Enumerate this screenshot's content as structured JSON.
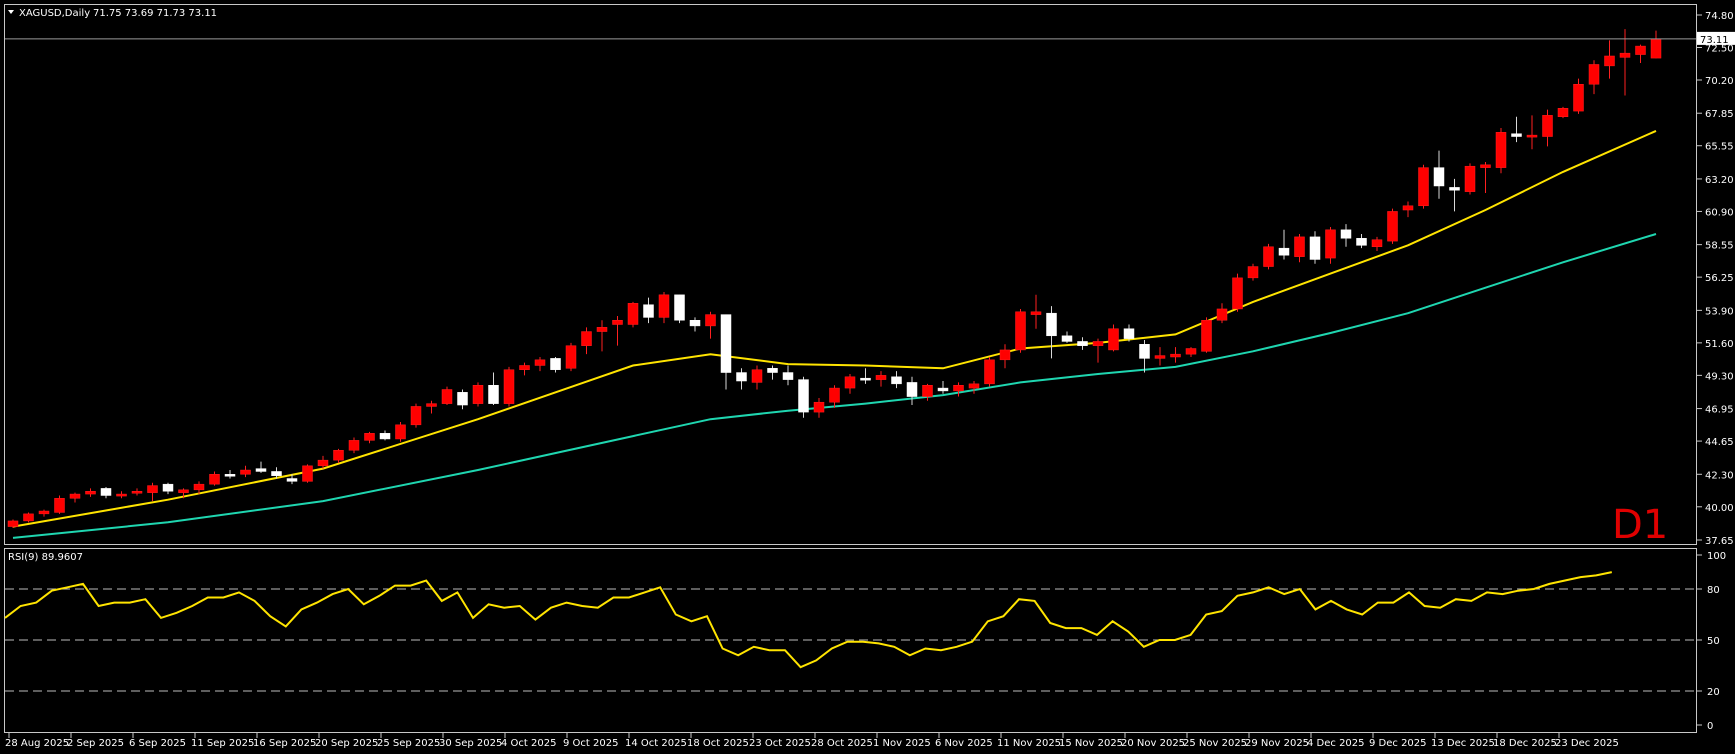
{
  "chart_data": {
    "type": "candlestick",
    "symbol_header": "XAGUSD,Daily",
    "ohlc_header": "71.75 73.69 71.73 73.11",
    "timeframe_label": "D1",
    "price_axis": {
      "range": [
        37.65,
        74.8
      ],
      "ticks": [
        "74.80",
        "72.50",
        "70.20",
        "67.85",
        "65.55",
        "63.20",
        "60.90",
        "58.55",
        "56.25",
        "53.90",
        "51.60",
        "49.30",
        "46.95",
        "44.65",
        "42.30",
        "40.00",
        "37.65"
      ]
    },
    "last_price_label": "73.11",
    "date_labels": [
      {
        "label": "28 Aug 2025",
        "bar": 0
      },
      {
        "label": "2 Sep 2025",
        "bar": 4
      },
      {
        "label": "6 Sep 2025",
        "bar": 8
      },
      {
        "label": "11 Sep 2025",
        "bar": 12
      },
      {
        "label": "16 Sep 2025",
        "bar": 16
      },
      {
        "label": "20 Sep 2025",
        "bar": 20
      },
      {
        "label": "25 Sep 2025",
        "bar": 24
      },
      {
        "label": "30 Sep 2025",
        "bar": 28
      },
      {
        "label": "4 Oct 2025",
        "bar": 32
      },
      {
        "label": "9 Oct 2025",
        "bar": 36
      },
      {
        "label": "14 Oct 2025",
        "bar": 40
      },
      {
        "label": "18 Oct 2025",
        "bar": 44
      },
      {
        "label": "23 Oct 2025",
        "bar": 48
      },
      {
        "label": "28 Oct 2025",
        "bar": 52
      },
      {
        "label": "1 Nov 2025",
        "bar": 56
      },
      {
        "label": "6 Nov 2025",
        "bar": 60
      },
      {
        "label": "11 Nov 2025",
        "bar": 64
      },
      {
        "label": "15 Nov 2025",
        "bar": 68
      },
      {
        "label": "20 Nov 2025",
        "bar": 72
      },
      {
        "label": "25 Nov 2025",
        "bar": 76
      },
      {
        "label": "29 Nov 2025",
        "bar": 80
      },
      {
        "label": "4 Dec 2025",
        "bar": 84
      },
      {
        "label": "9 Dec 2025",
        "bar": 88
      },
      {
        "label": "13 Dec 2025",
        "bar": 92
      },
      {
        "label": "18 Dec 2025",
        "bar": 96
      },
      {
        "label": "23 Dec 2025",
        "bar": 100
      }
    ],
    "candles": [
      [
        38.6,
        39.1,
        38.5,
        39.0
      ],
      [
        39.0,
        39.6,
        38.9,
        39.5
      ],
      [
        39.5,
        39.8,
        39.3,
        39.7
      ],
      [
        39.6,
        40.8,
        39.5,
        40.6
      ],
      [
        40.6,
        41.0,
        40.3,
        40.9
      ],
      [
        40.9,
        41.3,
        40.7,
        41.1
      ],
      [
        41.3,
        41.4,
        40.6,
        40.8
      ],
      [
        40.8,
        41.1,
        40.6,
        40.9
      ],
      [
        41.0,
        41.3,
        40.8,
        41.1
      ],
      [
        41.0,
        41.7,
        40.4,
        41.5
      ],
      [
        41.6,
        41.7,
        40.9,
        41.1
      ],
      [
        41.0,
        41.3,
        40.6,
        41.2
      ],
      [
        41.2,
        41.8,
        40.9,
        41.6
      ],
      [
        41.6,
        42.5,
        41.5,
        42.3
      ],
      [
        42.3,
        42.6,
        42.0,
        42.2
      ],
      [
        42.3,
        42.9,
        42.1,
        42.6
      ],
      [
        42.7,
        43.2,
        42.4,
        42.5
      ],
      [
        42.5,
        42.8,
        42.0,
        42.2
      ],
      [
        42.0,
        42.3,
        41.6,
        41.8
      ],
      [
        41.8,
        43.0,
        41.7,
        42.9
      ],
      [
        42.9,
        43.6,
        42.7,
        43.3
      ],
      [
        43.3,
        44.1,
        43.1,
        44.0
      ],
      [
        44.0,
        44.9,
        43.8,
        44.7
      ],
      [
        44.7,
        45.3,
        44.5,
        45.2
      ],
      [
        45.2,
        45.4,
        44.7,
        44.8
      ],
      [
        44.8,
        46.0,
        44.6,
        45.8
      ],
      [
        45.8,
        47.3,
        45.6,
        47.1
      ],
      [
        47.1,
        47.5,
        46.6,
        47.3
      ],
      [
        47.3,
        48.5,
        47.2,
        48.3
      ],
      [
        48.1,
        48.3,
        46.9,
        47.2
      ],
      [
        47.3,
        48.8,
        47.1,
        48.6
      ],
      [
        48.6,
        49.5,
        47.2,
        47.3
      ],
      [
        47.3,
        49.9,
        47.1,
        49.7
      ],
      [
        49.7,
        50.2,
        49.3,
        50.0
      ],
      [
        50.0,
        50.6,
        49.6,
        50.4
      ],
      [
        50.5,
        50.6,
        49.5,
        49.7
      ],
      [
        49.8,
        51.6,
        49.6,
        51.4
      ],
      [
        51.4,
        52.7,
        50.8,
        52.4
      ],
      [
        52.4,
        53.2,
        51.0,
        52.7
      ],
      [
        52.9,
        53.5,
        51.4,
        53.2
      ],
      [
        52.9,
        54.5,
        52.7,
        54.4
      ],
      [
        54.3,
        54.8,
        53.0,
        53.4
      ],
      [
        53.4,
        55.2,
        53.0,
        55.0
      ],
      [
        55.0,
        55.0,
        53.0,
        53.2
      ],
      [
        53.2,
        53.4,
        52.4,
        52.8
      ],
      [
        52.8,
        53.8,
        51.9,
        53.6
      ],
      [
        53.6,
        53.6,
        48.3,
        49.5
      ],
      [
        49.5,
        49.8,
        48.3,
        48.9
      ],
      [
        48.8,
        50.0,
        48.3,
        49.7
      ],
      [
        49.8,
        50.0,
        49.0,
        49.5
      ],
      [
        49.5,
        50.0,
        48.6,
        49.0
      ],
      [
        49.0,
        49.2,
        46.3,
        46.7
      ],
      [
        46.7,
        47.7,
        46.3,
        47.4
      ],
      [
        47.4,
        48.6,
        47.0,
        48.4
      ],
      [
        48.4,
        49.4,
        48.0,
        49.2
      ],
      [
        49.1,
        49.8,
        48.7,
        49.0
      ],
      [
        49.0,
        49.6,
        48.5,
        49.3
      ],
      [
        49.2,
        49.6,
        48.4,
        48.7
      ],
      [
        48.8,
        49.2,
        47.2,
        47.8
      ],
      [
        47.8,
        48.7,
        47.5,
        48.6
      ],
      [
        48.4,
        48.9,
        48.0,
        48.2
      ],
      [
        48.2,
        48.8,
        47.8,
        48.6
      ],
      [
        48.4,
        48.9,
        48.0,
        48.7
      ],
      [
        48.7,
        50.6,
        48.5,
        50.4
      ],
      [
        50.4,
        51.5,
        49.8,
        51.1
      ],
      [
        51.1,
        54.0,
        50.9,
        53.8
      ],
      [
        53.6,
        55.0,
        52.6,
        53.8
      ],
      [
        53.7,
        54.2,
        50.5,
        52.1
      ],
      [
        52.1,
        52.4,
        51.6,
        51.7
      ],
      [
        51.7,
        52.0,
        51.1,
        51.4
      ],
      [
        51.4,
        51.9,
        50.2,
        51.7
      ],
      [
        51.1,
        52.9,
        51.0,
        52.6
      ],
      [
        52.6,
        52.9,
        51.7,
        51.9
      ],
      [
        51.5,
        51.8,
        49.5,
        50.5
      ],
      [
        50.5,
        51.3,
        50.0,
        50.7
      ],
      [
        50.6,
        51.3,
        50.2,
        50.8
      ],
      [
        50.8,
        51.3,
        50.6,
        51.2
      ],
      [
        51.0,
        53.4,
        50.9,
        53.2
      ],
      [
        53.2,
        54.4,
        53.0,
        54.0
      ],
      [
        54.0,
        56.5,
        53.8,
        56.2
      ],
      [
        56.2,
        57.2,
        56.0,
        57.0
      ],
      [
        57.0,
        58.6,
        56.8,
        58.4
      ],
      [
        58.3,
        59.6,
        57.5,
        57.8
      ],
      [
        57.7,
        59.3,
        57.3,
        59.1
      ],
      [
        59.1,
        59.5,
        57.2,
        57.5
      ],
      [
        57.6,
        59.8,
        57.2,
        59.6
      ],
      [
        59.6,
        60.0,
        58.4,
        59.0
      ],
      [
        59.0,
        59.3,
        58.3,
        58.5
      ],
      [
        58.4,
        59.1,
        58.1,
        58.9
      ],
      [
        58.8,
        61.1,
        58.6,
        60.9
      ],
      [
        61.0,
        61.6,
        60.5,
        61.3
      ],
      [
        61.3,
        64.2,
        61.1,
        64.0
      ],
      [
        64.0,
        65.2,
        61.8,
        62.7
      ],
      [
        62.6,
        63.2,
        60.9,
        62.4
      ],
      [
        62.3,
        64.3,
        62.1,
        64.1
      ],
      [
        64.0,
        64.4,
        62.2,
        64.2
      ],
      [
        64.0,
        66.8,
        63.6,
        66.5
      ],
      [
        66.4,
        67.6,
        65.8,
        66.2
      ],
      [
        66.2,
        67.7,
        65.3,
        66.3
      ],
      [
        66.2,
        68.1,
        65.5,
        67.7
      ],
      [
        67.6,
        68.3,
        67.5,
        68.2
      ],
      [
        68.0,
        70.3,
        67.8,
        69.9
      ],
      [
        69.9,
        71.6,
        69.2,
        71.3
      ],
      [
        71.2,
        73.0,
        70.3,
        71.9
      ],
      [
        71.8,
        73.8,
        69.1,
        72.1
      ],
      [
        72.0,
        72.7,
        71.4,
        72.6
      ],
      [
        71.75,
        73.69,
        71.73,
        73.11
      ]
    ],
    "ma_fast": {
      "color": "#ffe400",
      "values": [
        [
          0,
          38.6
        ],
        [
          10,
          40.5
        ],
        [
          20,
          42.7
        ],
        [
          30,
          46.2
        ],
        [
          40,
          50.0
        ],
        [
          45,
          50.8
        ],
        [
          50,
          50.1
        ],
        [
          55,
          50.0
        ],
        [
          60,
          49.8
        ],
        [
          65,
          51.2
        ],
        [
          70,
          51.6
        ],
        [
          75,
          52.2
        ],
        [
          80,
          54.5
        ],
        [
          85,
          56.5
        ],
        [
          90,
          58.5
        ],
        [
          95,
          61.0
        ],
        [
          100,
          63.7
        ],
        [
          106,
          66.6
        ]
      ]
    },
    "ma_slow": {
      "color": "#1fd6b0",
      "values": [
        [
          0,
          37.8
        ],
        [
          10,
          38.9
        ],
        [
          20,
          40.4
        ],
        [
          30,
          42.6
        ],
        [
          40,
          45.0
        ],
        [
          45,
          46.2
        ],
        [
          50,
          46.8
        ],
        [
          55,
          47.3
        ],
        [
          60,
          47.9
        ],
        [
          65,
          48.8
        ],
        [
          70,
          49.4
        ],
        [
          75,
          49.9
        ],
        [
          80,
          51.0
        ],
        [
          85,
          52.3
        ],
        [
          90,
          53.7
        ],
        [
          95,
          55.5
        ],
        [
          100,
          57.3
        ],
        [
          106,
          59.3
        ]
      ]
    },
    "rsi": {
      "header": "RSI(9) 89.9607",
      "range": [
        0,
        100
      ],
      "ticks": [
        "100",
        "80",
        "50",
        "20",
        "0"
      ],
      "levels": [
        80,
        50,
        20
      ],
      "color": "#ffe400",
      "values": [
        63,
        70,
        72,
        79,
        81,
        83,
        70,
        72,
        72,
        74,
        63,
        66,
        70,
        75,
        75,
        78,
        73,
        64,
        58,
        68,
        72,
        77,
        80,
        71,
        76,
        82,
        82,
        85,
        73,
        78,
        63,
        71,
        69,
        70,
        62,
        69,
        72,
        70,
        69,
        75,
        75,
        78,
        81,
        65,
        61,
        64,
        45,
        41,
        46,
        44,
        44,
        34,
        38,
        45,
        49,
        49,
        48,
        46,
        41,
        45,
        44,
        46,
        49,
        61,
        64,
        74,
        73,
        60,
        57,
        57,
        53,
        61,
        55,
        46,
        50,
        50,
        53,
        65,
        67,
        76,
        78,
        81,
        77,
        80,
        68,
        73,
        68,
        65,
        72,
        72,
        78,
        70,
        69,
        74,
        73,
        78,
        77,
        79,
        80,
        83,
        85,
        87,
        88,
        89.96
      ]
    }
  }
}
